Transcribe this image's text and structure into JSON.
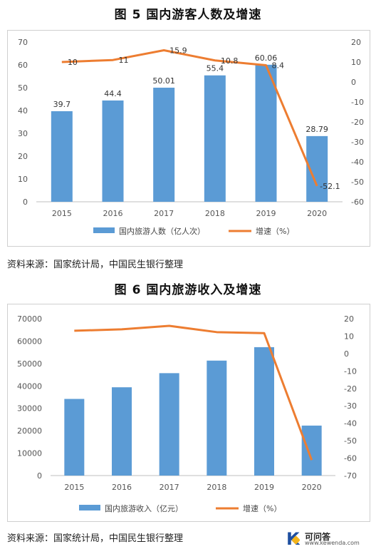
{
  "figure1": {
    "title": "图 5   国内游客人数及增速",
    "source": "资料来源：国家统计局，中国民生银行整理",
    "chart_data": {
      "type": "bar",
      "categories": [
        "2015",
        "2016",
        "2017",
        "2018",
        "2019",
        "2020"
      ],
      "series": [
        {
          "name": "国内旅游人数（亿人次）",
          "type": "bar",
          "axis": "left",
          "values": [
            39.7,
            44.4,
            50.01,
            55.4,
            60.06,
            28.79
          ],
          "labels": [
            "39.7",
            "44.4",
            "50.01",
            "55.4",
            "60.06",
            "28.79"
          ],
          "color": "#5b9bd5"
        },
        {
          "name": "增速（%）",
          "type": "line",
          "axis": "right",
          "values": [
            10,
            11,
            15.9,
            10.8,
            8.4,
            -52.1
          ],
          "labels": [
            "10",
            "11",
            "15.9",
            "10.8",
            "8.4",
            "-52.1"
          ],
          "color": "#ed7d31"
        }
      ],
      "ylim_left": [
        0,
        70
      ],
      "yticks_left": [
        "70",
        "60",
        "50",
        "40",
        "30",
        "20",
        "10",
        "0"
      ],
      "ylim_right": [
        -60,
        20
      ],
      "yticks_right": [
        "20",
        "10",
        "0",
        "-10",
        "-20",
        "-30",
        "-40",
        "-50",
        "-60"
      ],
      "grid": false,
      "legend_position": "bottom"
    }
  },
  "figure2": {
    "title": "图 6   国内旅游收入及增速",
    "source": "资料来源：国家统计局，中国民生银行整理",
    "chart_data": {
      "type": "bar",
      "categories": [
        "2015",
        "2016",
        "2017",
        "2018",
        "2019",
        "2020"
      ],
      "series": [
        {
          "name": "国内旅游收入（亿元）",
          "type": "bar",
          "axis": "left",
          "values": [
            34200,
            39400,
            45700,
            51300,
            57300,
            22300
          ],
          "color": "#5b9bd5"
        },
        {
          "name": "增速（%）",
          "type": "line",
          "axis": "right",
          "values": [
            13.1,
            13.9,
            15.9,
            12.3,
            11.7,
            -61.1
          ],
          "color": "#ed7d31"
        }
      ],
      "ylim_left": [
        0,
        70000
      ],
      "yticks_left": [
        "70000",
        "60000",
        "50000",
        "40000",
        "30000",
        "20000",
        "10000",
        "0"
      ],
      "ylim_right": [
        -70,
        20
      ],
      "yticks_right": [
        "20",
        "10",
        "0",
        "-10",
        "-20",
        "-30",
        "-40",
        "-50",
        "-60",
        "-70"
      ],
      "grid": false,
      "legend_position": "bottom"
    }
  },
  "watermark": {
    "logo_letter": "K",
    "top_text": "可问答",
    "bottom_text": "www.kewenda.com"
  }
}
